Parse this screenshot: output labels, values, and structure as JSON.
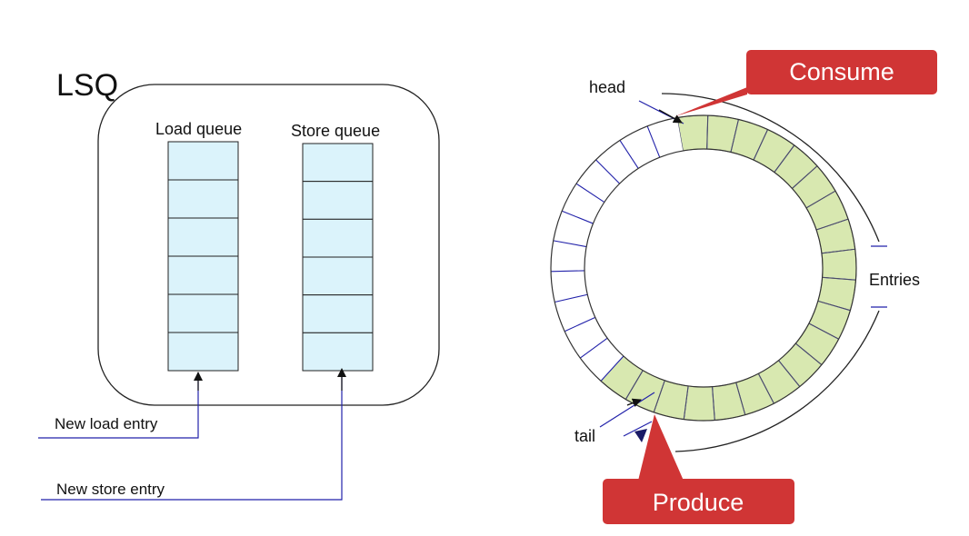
{
  "lsq": {
    "title": "LSQ",
    "load_queue_label": "Load queue",
    "store_queue_label": "Store queue",
    "load_slots": 6,
    "store_slots": 6,
    "new_load_entry_label": "New load entry",
    "new_store_entry_label": "New store entry"
  },
  "ring": {
    "head_label": "head",
    "tail_label": "tail",
    "entries_label": "Entries",
    "consume_label": "Consume",
    "produce_label": "Produce",
    "total_slots": 31,
    "filled_slots": 20
  },
  "colors": {
    "queue_fill": "#dbf3fb",
    "ring_fill": "#d8e8b0",
    "callout": "#d03535",
    "wire": "#2222aa",
    "outline": "#222222"
  }
}
